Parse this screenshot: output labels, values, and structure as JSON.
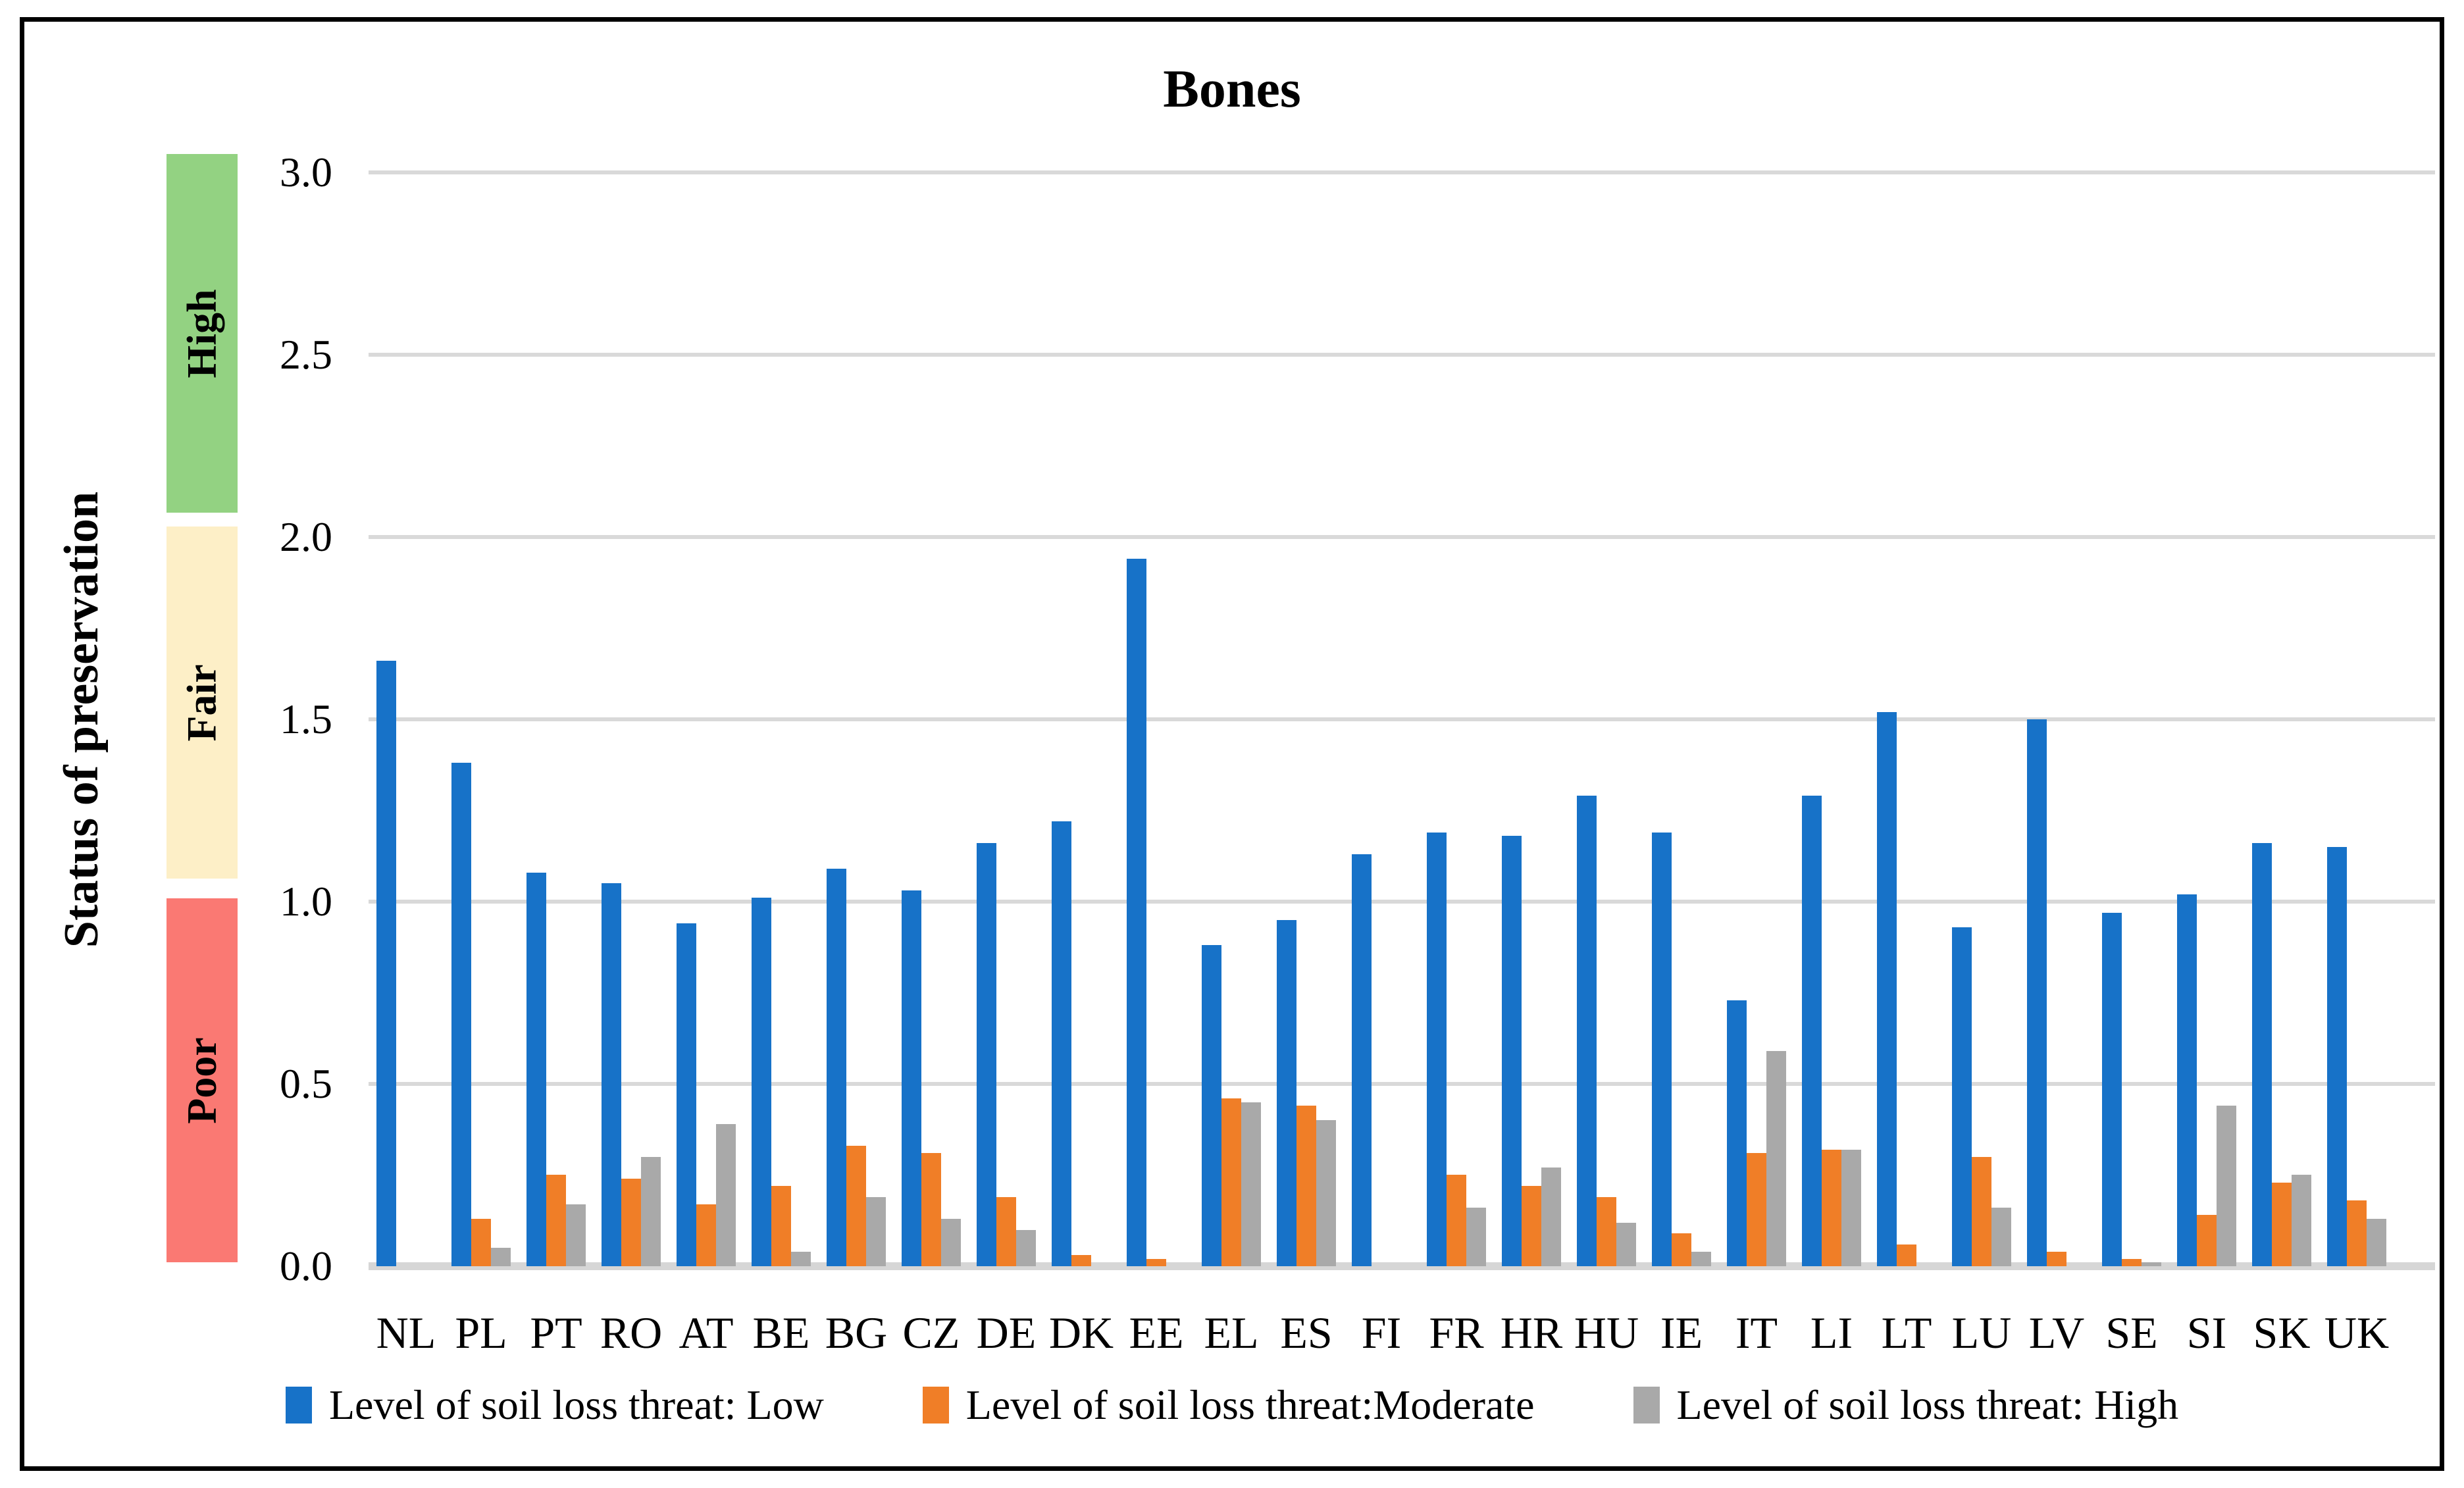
{
  "title": "Bones",
  "y_axis": {
    "label": "Status of preservation",
    "ticks": [
      "3.0",
      "2.5",
      "2.0",
      "1.5",
      "1.0",
      "0.5",
      "0.0"
    ],
    "bands": [
      {
        "label": "High",
        "color": "#93d282",
        "range": "2.0-3.0"
      },
      {
        "label": "Fair",
        "color": "#fdefc7",
        "range": "1.0-2.0"
      },
      {
        "label": "Poor",
        "color": "#fa7973",
        "range": "0.0-1.0"
      }
    ]
  },
  "legend": [
    {
      "label": "Level of soil loss threat: Low",
      "color": "#1772c8"
    },
    {
      "label": "Level of soil loss threat:Moderate",
      "color": "#f07e27"
    },
    {
      "label": "Level of soil loss threat: High",
      "color": "#a9a9a9"
    }
  ],
  "chart_data": {
    "type": "bar",
    "title": "Bones",
    "xlabel": "",
    "ylabel": "Status of preservation",
    "ylim": [
      0,
      3.0
    ],
    "ytick_step": 0.5,
    "grid": true,
    "legend_position": "bottom",
    "band_annotations": [
      {
        "label": "High",
        "from": 2.0,
        "to": 3.0,
        "color": "#93d282"
      },
      {
        "label": "Fair",
        "from": 1.0,
        "to": 2.0,
        "color": "#fdefc7"
      },
      {
        "label": "Poor",
        "from": 0.0,
        "to": 1.0,
        "color": "#fa7973"
      }
    ],
    "categories": [
      "NL",
      "PL",
      "PT",
      "RO",
      "AT",
      "BE",
      "BG",
      "CZ",
      "DE",
      "DK",
      "EE",
      "EL",
      "ES",
      "FI",
      "FR",
      "HR",
      "HU",
      "IE",
      "IT",
      "LI",
      "LT",
      "LU",
      "LV",
      "SE",
      "SI",
      "SK",
      "UK"
    ],
    "series": [
      {
        "name": "Level of soil loss threat: Low",
        "color": "#1772c8",
        "values": [
          1.66,
          1.38,
          1.08,
          1.05,
          0.94,
          1.01,
          1.09,
          1.03,
          1.16,
          1.22,
          1.94,
          0.88,
          0.95,
          1.13,
          1.19,
          1.18,
          1.29,
          1.19,
          0.73,
          1.29,
          1.52,
          0.93,
          1.5,
          0.97,
          1.02,
          1.16,
          1.15
        ]
      },
      {
        "name": "Level of soil loss threat:Moderate",
        "color": "#f07e27",
        "values": [
          0,
          0.13,
          0.25,
          0.24,
          0.17,
          0.22,
          0.33,
          0.31,
          0.19,
          0.03,
          0.02,
          0.46,
          0.44,
          0,
          0.25,
          0.22,
          0.19,
          0.09,
          0.31,
          0.32,
          0.06,
          0.3,
          0.04,
          0.02,
          0.14,
          0.23,
          0.18
        ]
      },
      {
        "name": "Level of soil loss threat: High",
        "color": "#a9a9a9",
        "values": [
          0,
          0.05,
          0.17,
          0.3,
          0.39,
          0.04,
          0.19,
          0.13,
          0.1,
          0,
          0,
          0.45,
          0.4,
          0,
          0.16,
          0.27,
          0.12,
          0.04,
          0.59,
          0.32,
          0,
          0.16,
          0,
          0.01,
          0.44,
          0.25,
          0.13
        ]
      }
    ]
  }
}
